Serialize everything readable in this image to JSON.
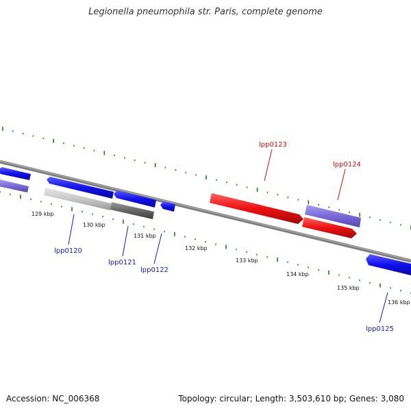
{
  "title": "Legionella pneumophila str. Paris, complete genome",
  "footer": {
    "accession": "Accession: NC_006368",
    "stats": "Topology: circular; Length: 3,503,610 bp; Genes: 3,080"
  },
  "colors": {
    "backbone": "#7f7f7f",
    "tick": "#1a7a1a",
    "gene_forward": "#1010ee",
    "gene_reverse": "#ee1010",
    "gene_forward_light": "#7a6ad8",
    "pseudo_light": "#c8c8c8",
    "pseudo_dark": "#666666",
    "label_blue": "#1a1aa8",
    "label_red": "#cc1111"
  },
  "kbp_labels": [
    "129 kbp",
    "130 kbp",
    "131 kbp",
    "132 kbp",
    "133 kbp",
    "134 kbp",
    "135 kbp",
    "136 kbp"
  ],
  "genes": [
    {
      "id": "lpp0120",
      "label": "lpp0120",
      "color": "label_blue"
    },
    {
      "id": "lpp0121",
      "label": "lpp0121",
      "color": "label_blue"
    },
    {
      "id": "lpp0122",
      "label": "lpp0122",
      "color": "label_blue"
    },
    {
      "id": "lpp0123",
      "label": "lpp0123",
      "color": "label_red"
    },
    {
      "id": "lpp0124",
      "label": "lpp0124",
      "color": "label_red"
    },
    {
      "id": "lpp0125",
      "label": "lpp0125",
      "color": "label_blue"
    }
  ]
}
